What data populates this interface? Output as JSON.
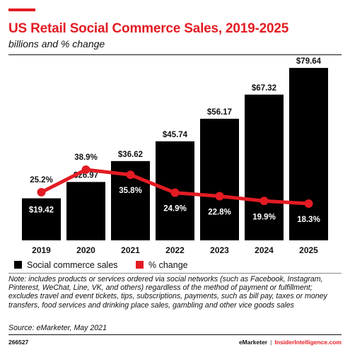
{
  "title": "US Retail Social Commerce Sales, 2019-2025",
  "subtitle": "billions and % change",
  "legend": {
    "bars": "Social commerce sales",
    "line": "% change"
  },
  "note": "Note: includes products or services ordered via social networks (such as Facebook, Instagram, Pinterest, WeChat, Line, VK, and others) regardless of the method of payment or fulfillment; excludes travel and event tickets, tips, subscriptions, payments, such as bill pay, taxes or money transfers, food services and drinking place sales, gambling and other vice goods sales",
  "source": "Source: eMarketer, May 2021",
  "chart_id": "266527",
  "brand": {
    "emarketer": "eMarketer",
    "separator": "|",
    "insider": "InsiderIntelligence.com"
  },
  "colors": {
    "bars": "#000000",
    "line": "#e31b23",
    "title": "#e31b23"
  },
  "chart_data": {
    "type": "bar",
    "categories": [
      "2019",
      "2020",
      "2021",
      "2022",
      "2023",
      "2024",
      "2025"
    ],
    "series": [
      {
        "name": "Social commerce sales",
        "type": "bar",
        "values": [
          19.42,
          26.97,
          36.62,
          45.74,
          56.17,
          67.32,
          79.64
        ],
        "labels": [
          "$19.42",
          "$26.97",
          "$36.62",
          "$45.74",
          "$56.17",
          "$67.32",
          "$79.64"
        ]
      },
      {
        "name": "% change",
        "type": "line",
        "values": [
          25.2,
          38.9,
          35.8,
          24.9,
          22.8,
          19.9,
          18.3
        ],
        "labels": [
          "25.2%",
          "38.9%",
          "35.8%",
          "24.9%",
          "22.8%",
          "19.9%",
          "18.3%"
        ]
      }
    ],
    "title": "US Retail Social Commerce Sales, 2019-2025",
    "xlabel": "",
    "ylabel": "",
    "grid": false,
    "legend_position": "bottom-left"
  }
}
